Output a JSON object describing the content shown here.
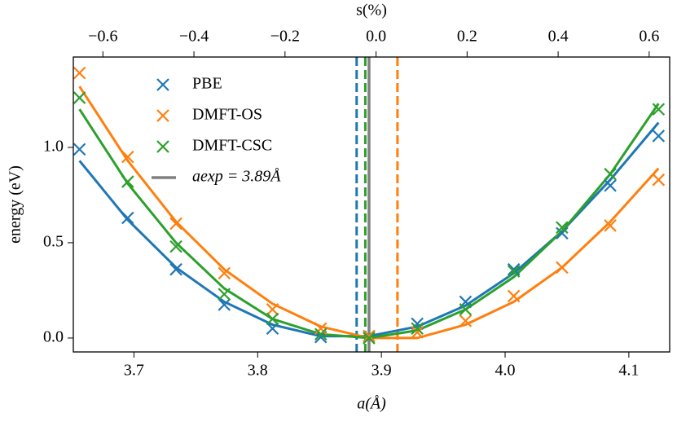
{
  "chart_data": {
    "type": "scatter",
    "xlabel": "a(Å)",
    "x2label": "s(%)",
    "ylabel": "energy (eV)",
    "x": [
      3.656,
      3.695,
      3.734,
      3.773,
      3.812,
      3.851,
      3.89,
      3.929,
      3.968,
      4.007,
      4.046,
      4.085,
      4.124
    ],
    "xlim": [
      3.651,
      4.133
    ],
    "xticks": [
      3.7,
      3.8,
      3.9,
      {
        "value": 4,
        "label": "4.0"
      },
      4.1
    ],
    "x2lim": [
      -0.665,
      0.645
    ],
    "x2ticks": [
      {
        "value": -0.6,
        "label": "−0.6"
      },
      {
        "value": -0.4,
        "label": "−0.4"
      },
      {
        "value": -0.2,
        "label": "−0.2"
      },
      {
        "value": 0,
        "label": "0.0"
      },
      0.2,
      0.4,
      0.6
    ],
    "ylim": [
      -0.073,
      1.474
    ],
    "yticks": [
      {
        "value": 0,
        "label": "0.0"
      },
      0.5,
      {
        "value": 1,
        "label": "1.0"
      }
    ],
    "series": [
      {
        "name": "PBE",
        "color": "#1f77b4",
        "values": [
          0.99,
          0.63,
          0.36,
          0.175,
          0.05,
          0.005,
          0.01,
          0.075,
          0.19,
          0.36,
          0.55,
          0.8,
          1.06
        ],
        "fit": [
          0.93,
          0.62,
          0.37,
          0.19,
          0.07,
          0.01,
          0.01,
          0.06,
          0.17,
          0.34,
          0.56,
          0.83,
          1.13
        ]
      },
      {
        "name": "DMFT-OS",
        "color": "#ff7f0e",
        "values": [
          1.39,
          0.95,
          0.6,
          0.34,
          0.15,
          0.05,
          0.01,
          0.03,
          0.09,
          0.22,
          0.37,
          0.59,
          0.83
        ],
        "fit": [
          1.32,
          0.93,
          0.61,
          0.36,
          0.18,
          0.06,
          0.0,
          0.0,
          0.07,
          0.19,
          0.37,
          0.61,
          0.89
        ]
      },
      {
        "name": "DMFT-CSC",
        "color": "#2ca02c",
        "values": [
          1.26,
          0.82,
          0.48,
          0.23,
          0.1,
          0.02,
          0.0,
          0.05,
          0.15,
          0.35,
          0.58,
          0.86,
          1.2
        ],
        "fit": [
          1.2,
          0.81,
          0.5,
          0.26,
          0.1,
          0.02,
          0.0,
          0.04,
          0.15,
          0.32,
          0.56,
          0.86,
          1.23
        ]
      }
    ],
    "vlines": [
      {
        "value": 3.88,
        "color": "#1f77b4"
      },
      {
        "value": 3.913,
        "color": "#ff7f0e"
      },
      {
        "value": 3.887,
        "color": "#2ca02c"
      }
    ],
    "reference": {
      "name": "aexp = 3.89Å",
      "value": 3.89,
      "color": "#808080"
    },
    "legend": "upper left"
  }
}
